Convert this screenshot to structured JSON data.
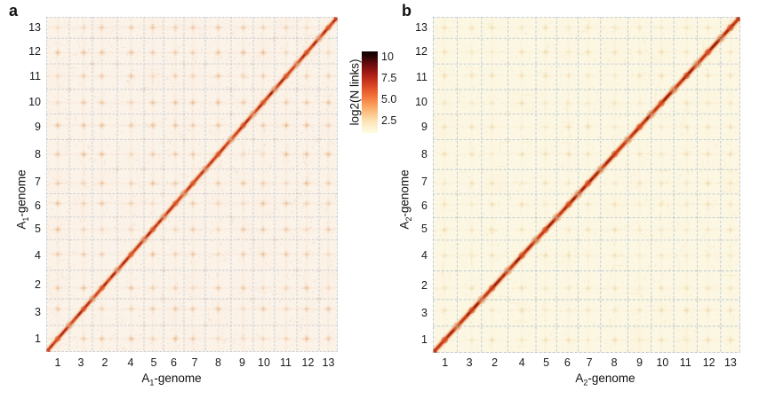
{
  "panels": [
    {
      "label": "a",
      "x_title": {
        "prefix": "A",
        "sub": "1",
        "suffix": "-genome"
      },
      "y_title": {
        "prefix": "A",
        "sub": "1",
        "suffix": "-genome"
      }
    },
    {
      "label": "b",
      "x_title": {
        "prefix": "A",
        "sub": "2",
        "suffix": "-genome"
      },
      "y_title": {
        "prefix": "A",
        "sub": "2",
        "suffix": "-genome"
      }
    }
  ],
  "colorbar": {
    "label": "log2(N links)",
    "tick_labels": [
      "10",
      "7.5",
      "5.0",
      "2.5"
    ],
    "tick_values": [
      10,
      7.5,
      5,
      2.5
    ],
    "vmin": 1,
    "vmax": 10.6,
    "gradient_stops": [
      [
        0.0,
        "#fffce3"
      ],
      [
        0.08,
        "#feefcd"
      ],
      [
        0.16,
        "#fddfae"
      ],
      [
        0.26,
        "#fcbe7e"
      ],
      [
        0.36,
        "#f99857"
      ],
      [
        0.45,
        "#f2733b"
      ],
      [
        0.53,
        "#e5572b"
      ],
      [
        0.62,
        "#cd3a20"
      ],
      [
        0.7,
        "#b02418"
      ],
      [
        0.78,
        "#8e1312"
      ],
      [
        0.86,
        "#5f0a0c"
      ],
      [
        0.93,
        "#2f0506"
      ],
      [
        1.0,
        "#0b0101"
      ]
    ]
  },
  "chart_data": [
    {
      "type": "heatmap",
      "panel": "a",
      "title": "",
      "xlabel": "A1-genome",
      "ylabel": "A1-genome",
      "categories": [
        "1",
        "3",
        "2",
        "4",
        "5",
        "6",
        "7",
        "8",
        "9",
        "10",
        "11",
        "12",
        "13"
      ],
      "axis_note": "Hi-C contact map; same chromosome order 1,3,2,4,5,6,7,8,9,10,11,12,13 on both axes; origin at bottom-left; strong cis-contact diagonal, faint centromeric trans-contact dots at grid intersections",
      "chromosome_rel_sizes": [
        26,
        26,
        28,
        30,
        22,
        23,
        24,
        29,
        25,
        24,
        25,
        25,
        21
      ],
      "centromere_fractions": [
        0.5,
        0.62,
        0.38,
        0.52,
        0.45,
        0.58,
        0.42,
        0.5,
        0.55,
        0.46,
        0.52,
        0.44,
        0.5
      ],
      "value_scale": "log2(N links)",
      "value_range_shown": [
        1,
        10.6
      ],
      "diagonal_value_approx": 8.5,
      "background_value_approx": 1.2,
      "colorbar": {
        "label": "log2(N links)",
        "ticks": [
          10,
          7.5,
          5,
          2.5
        ]
      },
      "grid": true,
      "style": {
        "background": "#fbf2e8",
        "grid_color": "#b6c2ce",
        "grid_dash": [
          2,
          2.4
        ],
        "diag_core": "#d0431b",
        "diag_mid": "#e06030",
        "diag_glow": "#f09f63",
        "diag_dark": "#a02410",
        "cross_color": "#dd8c44",
        "cross_alpha": 0.16,
        "noise_colors": [
          "#f2dcc4",
          "#eed2b4",
          "#f7e8d6",
          "#f0d6be"
        ],
        "streak_colors": [
          "#f3e3cb"
        ],
        "streak_count": 40,
        "noise_count": 2600,
        "diag_scale": 1.0,
        "tint_warm": "#f6e3cf",
        "tint_light": "#fffdf8",
        "seed": 20417
      }
    },
    {
      "type": "heatmap",
      "panel": "b",
      "title": "",
      "xlabel": "A2-genome",
      "ylabel": "A2-genome",
      "categories": [
        "1",
        "3",
        "2",
        "4",
        "5",
        "6",
        "7",
        "8",
        "9",
        "10",
        "11",
        "12",
        "13"
      ],
      "axis_note": "Hi-C contact map; same chromosome order 1,3,2,4,5,6,7,8,9,10,11,12,13 on both axes; origin at bottom-left; darker/thicker cis diagonal than panel a, fainter trans dots, yellower background",
      "chromosome_rel_sizes": [
        26,
        26,
        28,
        30,
        22,
        23,
        24,
        29,
        25,
        24,
        25,
        25,
        21
      ],
      "centromere_fractions": [
        0.48,
        0.6,
        0.4,
        0.5,
        0.46,
        0.56,
        0.44,
        0.52,
        0.5,
        0.45,
        0.55,
        0.46,
        0.5
      ],
      "value_scale": "log2(N links)",
      "value_range_shown": [
        1,
        10.6
      ],
      "diagonal_value_approx": 9,
      "background_value_approx": 1.1,
      "colorbar": {
        "label": "log2(N links)",
        "ticks": [
          10,
          7.5,
          5,
          2.5
        ]
      },
      "grid": true,
      "style": {
        "background": "#fcf7e3",
        "grid_color": "#a9bed2",
        "grid_dash": [
          2.5,
          2.5
        ],
        "diag_core": "#c23812",
        "diag_mid": "#d94f22",
        "diag_glow": "#eb9550",
        "diag_dark": "#8c1c08",
        "cross_color": "#ddb053",
        "cross_alpha": 0.09,
        "noise_colors": [
          "#f5ebc6",
          "#f1e3b4",
          "#faf3da",
          "#eeddb0"
        ],
        "streak_colors": [
          "#f0e2ae",
          "#f4e9c0"
        ],
        "streak_count": 110,
        "noise_count": 2400,
        "diag_scale": 1.12,
        "tint_warm": "#f7ecc9",
        "tint_light": "#fffef4",
        "seed": 77151
      }
    }
  ]
}
